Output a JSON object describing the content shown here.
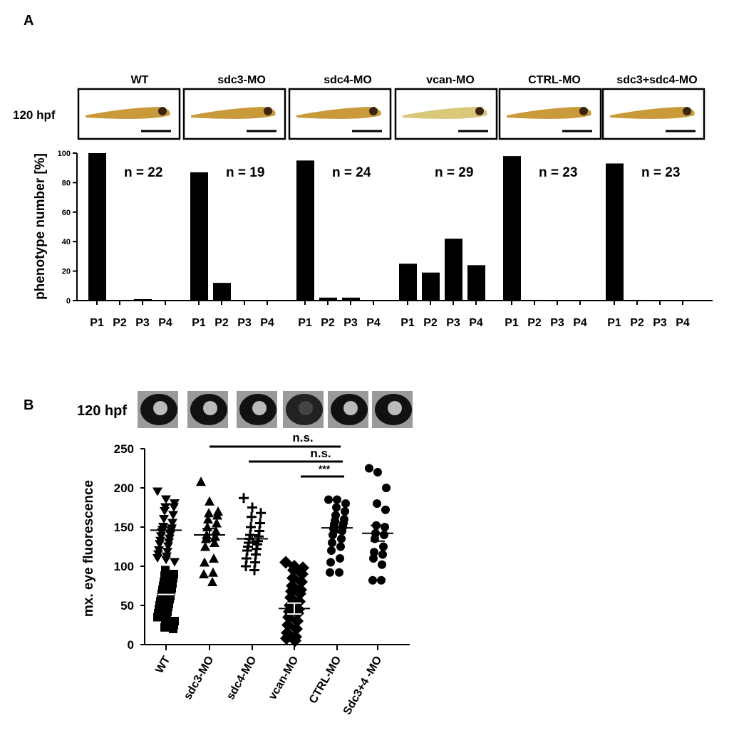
{
  "panel_labels": {
    "a": "A",
    "b": "B"
  },
  "chart_data": [
    {
      "type": "bar",
      "panel": "A",
      "timepoint_label": "120 hpf",
      "ylabel": "phenotype number [%]",
      "ylim": [
        0,
        100
      ],
      "yticks": [
        "0",
        "20",
        "40",
        "60",
        "80",
        "100"
      ],
      "categories": [
        "P1",
        "P2",
        "P3",
        "P4"
      ],
      "groups": [
        {
          "name": "WT",
          "n_label": "n =  22",
          "values": [
            100,
            0.5,
            1,
            0
          ]
        },
        {
          "name": "sdc3-MO",
          "n_label": "n =  19",
          "values": [
            87,
            12,
            0,
            0
          ]
        },
        {
          "name": "sdc4-MO",
          "n_label": "n =  24",
          "values": [
            95,
            2,
            2,
            0
          ]
        },
        {
          "name": "vcan-MO",
          "n_label": "n =  29",
          "values": [
            25,
            19,
            42,
            24
          ]
        },
        {
          "name": "CTRL-MO",
          "n_label": "n =  23",
          "values": [
            98,
            0.5,
            0,
            0
          ]
        },
        {
          "name": "sdc3+sdc4-MO",
          "n_label": "n = 23",
          "values": [
            93,
            0.5,
            0,
            0
          ]
        }
      ]
    },
    {
      "type": "scatter",
      "panel": "B",
      "timepoint_label": "120 hpf",
      "ylabel": "mx. eye fluorescence",
      "ylim": [
        0,
        250
      ],
      "yticks": [
        "0",
        "50",
        "100",
        "150",
        "200",
        "250"
      ],
      "categories": [
        "WT",
        "sdc3-MO",
        "sdc4-MO",
        "vcan-MO",
        "CTRL-MO",
        "Sdc3+4 -MO"
      ],
      "series": [
        {
          "name": "WT",
          "marker": "tri-down",
          "mean": 146,
          "mean2": 64,
          "values": [
            195,
            185,
            180,
            175,
            175,
            170,
            165,
            160,
            155,
            150,
            148,
            146,
            145,
            143,
            140,
            138,
            135,
            132,
            130,
            128,
            125,
            120,
            118,
            115,
            112,
            110,
            108,
            105,
            95,
            90,
            88,
            85,
            80,
            78,
            75,
            72,
            70,
            68,
            65,
            62,
            60,
            58,
            55,
            52,
            50,
            48,
            45,
            42,
            40,
            38,
            35,
            32,
            30,
            28,
            25,
            22,
            20
          ]
        },
        {
          "name": "sdc3-MO",
          "marker": "tri-up",
          "mean": 140,
          "sem": 8,
          "values": [
            208,
            183,
            170,
            168,
            165,
            160,
            155,
            150,
            145,
            140,
            138,
            135,
            130,
            125,
            110,
            105,
            92,
            90,
            80
          ]
        },
        {
          "name": "sdc4-MO",
          "marker": "plus",
          "mean": 135,
          "sem": 5,
          "values": [
            187,
            175,
            168,
            163,
            155,
            150,
            145,
            140,
            138,
            135,
            132,
            130,
            128,
            125,
            122,
            120,
            115,
            110,
            105,
            100,
            95
          ]
        },
        {
          "name": "vcan-MO",
          "marker": "diamond",
          "mean": 46,
          "sem": 7,
          "values": [
            105,
            100,
            98,
            95,
            90,
            85,
            80,
            75,
            70,
            68,
            65,
            60,
            55,
            50,
            45,
            42,
            40,
            35,
            30,
            25,
            20,
            15,
            10,
            8,
            5
          ]
        },
        {
          "name": "CTRL-MO",
          "marker": "circle",
          "mean": 149,
          "sem": 6,
          "values": [
            185,
            185,
            180,
            175,
            170,
            165,
            160,
            158,
            155,
            152,
            150,
            148,
            145,
            140,
            135,
            130,
            125,
            120,
            110,
            105,
            92,
            92
          ]
        },
        {
          "name": "Sdc3+4 -MO",
          "marker": "circle",
          "mean": 142,
          "sem": 10,
          "values": [
            225,
            220,
            200,
            180,
            172,
            152,
            150,
            142,
            140,
            135,
            125,
            118,
            115,
            110,
            102,
            82,
            82
          ]
        }
      ],
      "significance": [
        {
          "from": "sdc3-MO",
          "to": "CTRL-MO",
          "label": "n.s."
        },
        {
          "from": "sdc4-MO",
          "to": "CTRL-MO",
          "label": "n.s."
        },
        {
          "from": "vcan-MO",
          "to": "CTRL-MO",
          "label": "***"
        }
      ]
    }
  ]
}
